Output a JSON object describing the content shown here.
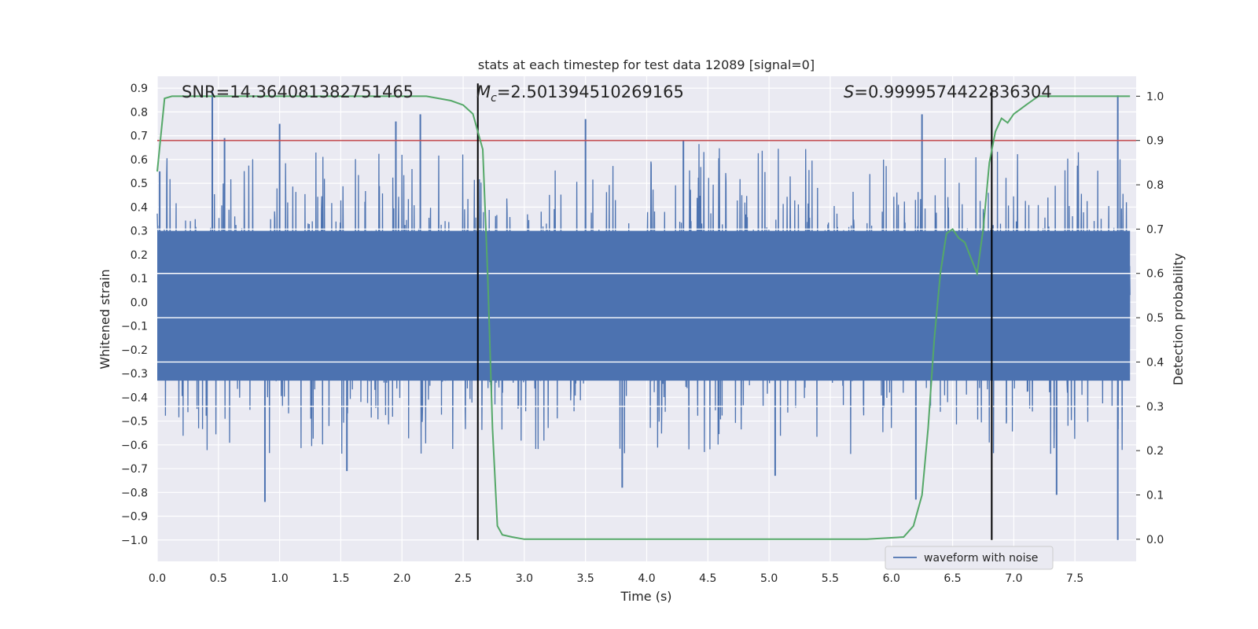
{
  "chart_data": {
    "type": "line",
    "title": "stats at each timestep for test data 12089 [signal=0]",
    "xlabel": "Time (s)",
    "ylabel": "Whitened strain",
    "y2label": "Detection probability",
    "xlim": [
      0.0,
      8.0
    ],
    "ylim": [
      -1.09,
      0.95
    ],
    "y2lim": [
      -0.05,
      1.045
    ],
    "xticks": [
      "0.0",
      "0.5",
      "1.0",
      "1.5",
      "2.0",
      "2.5",
      "3.0",
      "3.5",
      "4.0",
      "4.5",
      "5.0",
      "5.5",
      "6.0",
      "6.5",
      "7.0",
      "7.5"
    ],
    "yticks": [
      "0.9",
      "0.8",
      "0.7",
      "0.6",
      "0.5",
      "0.4",
      "0.3",
      "0.2",
      "0.1",
      "0.0",
      "-0.1",
      "-0.2",
      "-0.3",
      "-0.4",
      "-0.5",
      "-0.6",
      "-0.7",
      "-0.8",
      "-0.9",
      "-1.0"
    ],
    "y2ticks": [
      "1.0",
      "0.9",
      "0.8",
      "0.7",
      "0.6",
      "0.5",
      "0.4",
      "0.3",
      "0.2",
      "0.1",
      "0.0"
    ],
    "annotations": {
      "snr": "SNR=14.364081382751465",
      "mc_symbol": "M",
      "mc_sub": "c",
      "mc_value": "=2.501394510269165",
      "s_symbol": "S",
      "s_value": "=0.9999574422836304"
    },
    "threshold": {
      "value": 0.9,
      "axis": "y2",
      "color": "#c44e52"
    },
    "vertical_lines": [
      {
        "x": 2.62,
        "y_from": -1.0,
        "y_to": 0.92
      },
      {
        "x": 6.82,
        "y_from": -1.0,
        "y_to": 0.9
      }
    ],
    "series": [
      {
        "name": "waveform with noise",
        "axis": "y",
        "color": "#4c72b0",
        "style": "dense noise",
        "envelope": [
          -0.35,
          0.35
        ],
        "peaks": [
          [
            0.02,
            0.55
          ],
          [
            0.45,
            0.89
          ],
          [
            0.55,
            0.69
          ],
          [
            1.0,
            0.75
          ],
          [
            1.95,
            0.76
          ],
          [
            2.15,
            0.79
          ],
          [
            3.5,
            0.77
          ],
          [
            4.3,
            0.68
          ],
          [
            6.25,
            0.79
          ],
          [
            7.85,
            0.87
          ],
          [
            0.88,
            -0.84
          ],
          [
            1.55,
            -0.71
          ],
          [
            3.8,
            -0.78
          ],
          [
            5.05,
            -0.73
          ],
          [
            6.2,
            -0.83
          ],
          [
            7.35,
            -0.81
          ],
          [
            7.85,
            -1.0
          ]
        ]
      },
      {
        "name": "detection probability",
        "axis": "y2",
        "color": "#55a868",
        "x": [
          0.0,
          0.06,
          0.12,
          0.3,
          0.6,
          1.0,
          1.5,
          2.0,
          2.2,
          2.4,
          2.5,
          2.58,
          2.62,
          2.66,
          2.7,
          2.74,
          2.78,
          2.82,
          2.9,
          3.0,
          3.2,
          3.5,
          4.0,
          5.0,
          5.8,
          6.1,
          6.18,
          6.25,
          6.3,
          6.35,
          6.4,
          6.45,
          6.5,
          6.55,
          6.6,
          6.7,
          6.75,
          6.8,
          6.85,
          6.9,
          6.95,
          7.0,
          7.05,
          7.1,
          7.15,
          7.2,
          7.3,
          7.5,
          7.7,
          7.95
        ],
        "y": [
          0.83,
          0.995,
          1.0,
          1.0,
          1.0,
          1.0,
          1.0,
          1.0,
          1.0,
          0.99,
          0.98,
          0.96,
          0.92,
          0.88,
          0.6,
          0.25,
          0.03,
          0.01,
          0.005,
          0.0,
          0.0,
          0.0,
          0.0,
          0.0,
          0.0,
          0.005,
          0.03,
          0.1,
          0.25,
          0.45,
          0.6,
          0.69,
          0.7,
          0.68,
          0.67,
          0.6,
          0.7,
          0.85,
          0.92,
          0.95,
          0.94,
          0.96,
          0.97,
          0.98,
          0.99,
          1.0,
          1.0,
          1.0,
          1.0,
          1.0
        ]
      }
    ],
    "legend": {
      "label": "waveform with noise",
      "position": "lower-right"
    }
  }
}
